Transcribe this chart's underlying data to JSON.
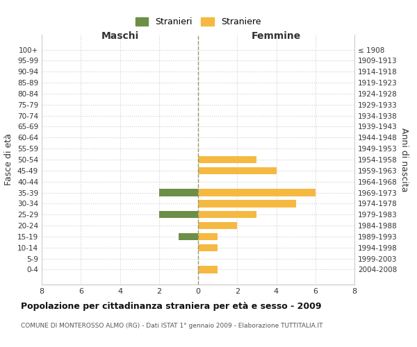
{
  "age_groups": [
    "100+",
    "95-99",
    "90-94",
    "85-89",
    "80-84",
    "75-79",
    "70-74",
    "65-69",
    "60-64",
    "55-59",
    "50-54",
    "45-49",
    "40-44",
    "35-39",
    "30-34",
    "25-29",
    "20-24",
    "15-19",
    "10-14",
    "5-9",
    "0-4"
  ],
  "birth_years": [
    "≤ 1908",
    "1909-1913",
    "1914-1918",
    "1919-1923",
    "1924-1928",
    "1929-1933",
    "1934-1938",
    "1939-1943",
    "1944-1948",
    "1949-1953",
    "1954-1958",
    "1959-1963",
    "1964-1968",
    "1969-1973",
    "1974-1978",
    "1979-1983",
    "1984-1988",
    "1989-1993",
    "1994-1998",
    "1999-2003",
    "2004-2008"
  ],
  "maschi": [
    0,
    0,
    0,
    0,
    0,
    0,
    0,
    0,
    0,
    0,
    0,
    0,
    0,
    2,
    0,
    2,
    0,
    1,
    0,
    0,
    0
  ],
  "femmine": [
    0,
    0,
    0,
    0,
    0,
    0,
    0,
    0,
    0,
    0,
    3,
    4,
    0,
    6,
    5,
    3,
    2,
    1,
    1,
    0,
    1
  ],
  "color_maschi": "#6b8f47",
  "color_femmine": "#f5b942",
  "title": "Popolazione per cittadinanza straniera per età e sesso - 2009",
  "subtitle": "COMUNE DI MONTEROSSO ALMO (RG) - Dati ISTAT 1° gennaio 2009 - Elaborazione TUTTITALIA.IT",
  "ylabel_left": "Fasce di età",
  "ylabel_right": "Anni di nascita",
  "label_maschi": "Maschi",
  "label_femmine": "Femmine",
  "legend_maschi": "Stranieri",
  "legend_femmine": "Straniere",
  "xlim": 8,
  "background_color": "#ffffff",
  "grid_color": "#cccccc",
  "dashed_line_color": "#999966"
}
